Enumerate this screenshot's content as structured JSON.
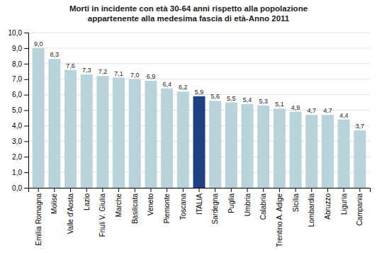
{
  "chart_data": {
    "type": "bar",
    "title": "Morti in incidente con età 30-64 anni rispetto  alla popolazione\nappartenente  alla medesima fascia  di età-Anno  2011",
    "categories": [
      "Emilia Romagna",
      "Molise",
      "Valle d'Aosta",
      "Lazio",
      "Friuli V. Giulia",
      "Marche",
      "Basilicata",
      "Veneto",
      "Piemonte",
      "Toscana",
      "ITALIA",
      "Sardegna",
      "Puglia",
      "Umbria",
      "Calabria",
      "Trentino A. Adige",
      "Sicilia",
      "Lombardia",
      "Abruzzo",
      "Liguria",
      "Campania"
    ],
    "values": [
      9.0,
      8.3,
      7.6,
      7.3,
      7.2,
      7.1,
      7.0,
      6.9,
      6.4,
      6.2,
      5.9,
      5.6,
      5.5,
      5.4,
      5.3,
      5.1,
      4.9,
      4.7,
      4.7,
      4.4,
      3.7
    ],
    "value_labels": [
      "9,0",
      "8,3",
      "7,6",
      "7,3",
      "7,2",
      "7,1",
      "7,0",
      "6,9",
      "6,4",
      "6,2",
      "5,9",
      "5,6",
      "5,5",
      "5,4",
      "5,3",
      "5,1",
      "4,9",
      "4,7",
      "4,7",
      "4,4",
      "3,7"
    ],
    "colors": [
      "#b8d4da",
      "#b8d4da",
      "#b8d4da",
      "#b8d4da",
      "#b8d4da",
      "#b8d4da",
      "#b8d4da",
      "#b8d4da",
      "#b8d4da",
      "#b8d4da",
      "#1f4080",
      "#b8d4da",
      "#b8d4da",
      "#b8d4da",
      "#b8d4da",
      "#b8d4da",
      "#b8d4da",
      "#b8d4da",
      "#b8d4da",
      "#b8d4da",
      "#b8d4da"
    ],
    "ylim": [
      0,
      10.0
    ],
    "yticks": [
      {
        "value": 0.0,
        "label": "0,0"
      },
      {
        "value": 1.0,
        "label": "1,0"
      },
      {
        "value": 2.0,
        "label": "2,0"
      },
      {
        "value": 3.0,
        "label": "3,0"
      },
      {
        "value": 4.0,
        "label": "4,0"
      },
      {
        "value": 5.0,
        "label": "5,0"
      },
      {
        "value": 6.0,
        "label": "6,0"
      },
      {
        "value": 7.0,
        "label": "7,0"
      },
      {
        "value": 8.0,
        "label": "8,0"
      },
      {
        "value": 9.0,
        "label": "9,0"
      },
      {
        "value": 10.0,
        "label": "10,0"
      }
    ],
    "grid": true,
    "data_labels": true
  }
}
